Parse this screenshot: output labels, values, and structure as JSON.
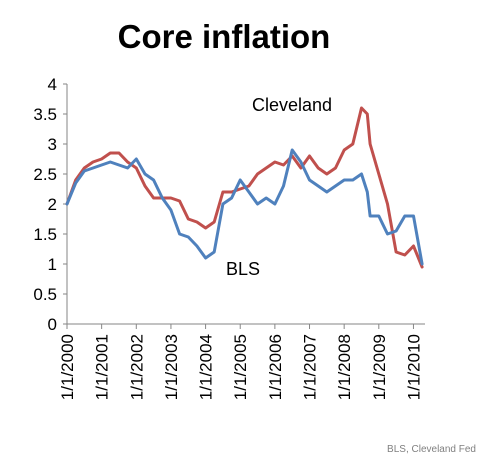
{
  "chart_data": {
    "type": "line",
    "title": "Core inflation",
    "source": "BLS, Cleveland Fed",
    "xlabel": "",
    "ylabel": "",
    "ylim": [
      0,
      4
    ],
    "yticks": [
      "0",
      "0.5",
      "1",
      "1.5",
      "2",
      "2.5",
      "3",
      "3.5",
      "4"
    ],
    "xlim": [
      "2000-01-01",
      "2010-05-01"
    ],
    "xticks": [
      "1/1/2000",
      "1/1/2001",
      "1/1/2002",
      "1/1/2003",
      "1/1/2004",
      "1/1/2005",
      "1/1/2006",
      "1/1/2007",
      "1/1/2008",
      "1/1/2009",
      "1/1/2010"
    ],
    "grid": false,
    "legend": "none",
    "colors": {
      "BLS": "#4f81bd",
      "Cleveland": "#c0504d"
    },
    "series": [
      {
        "name": "Cleveland",
        "color": "#c0504d",
        "x": [
          "2000-01",
          "2000-04",
          "2000-07",
          "2000-10",
          "2001-01",
          "2001-04",
          "2001-07",
          "2001-10",
          "2002-01",
          "2002-04",
          "2002-07",
          "2002-10",
          "2003-01",
          "2003-04",
          "2003-07",
          "2003-10",
          "2004-01",
          "2004-04",
          "2004-07",
          "2004-10",
          "2005-01",
          "2005-04",
          "2005-07",
          "2005-10",
          "2006-01",
          "2006-04",
          "2006-07",
          "2006-10",
          "2007-01",
          "2007-04",
          "2007-07",
          "2007-10",
          "2008-01",
          "2008-04",
          "2008-07",
          "2008-09",
          "2008-10",
          "2009-01",
          "2009-04",
          "2009-07",
          "2009-10",
          "2010-01",
          "2010-04"
        ],
        "values": [
          2.0,
          2.4,
          2.6,
          2.7,
          2.75,
          2.85,
          2.85,
          2.7,
          2.6,
          2.3,
          2.1,
          2.1,
          2.1,
          2.05,
          1.75,
          1.7,
          1.6,
          1.7,
          2.2,
          2.2,
          2.25,
          2.3,
          2.5,
          2.6,
          2.7,
          2.65,
          2.8,
          2.6,
          2.8,
          2.6,
          2.5,
          2.6,
          2.9,
          3.0,
          3.6,
          3.5,
          3.0,
          2.5,
          2.0,
          1.2,
          1.15,
          1.3,
          0.95
        ]
      },
      {
        "name": "BLS",
        "color": "#4f81bd",
        "x": [
          "2000-01",
          "2000-04",
          "2000-07",
          "2000-10",
          "2001-01",
          "2001-04",
          "2001-07",
          "2001-10",
          "2002-01",
          "2002-04",
          "2002-07",
          "2002-10",
          "2003-01",
          "2003-04",
          "2003-07",
          "2003-10",
          "2004-01",
          "2004-04",
          "2004-07",
          "2004-10",
          "2005-01",
          "2005-04",
          "2005-07",
          "2005-10",
          "2006-01",
          "2006-04",
          "2006-07",
          "2006-10",
          "2007-01",
          "2007-04",
          "2007-07",
          "2007-10",
          "2008-01",
          "2008-04",
          "2008-07",
          "2008-09",
          "2008-10",
          "2009-01",
          "2009-04",
          "2009-07",
          "2009-10",
          "2010-01",
          "2010-04"
        ],
        "values": [
          2.0,
          2.35,
          2.55,
          2.6,
          2.65,
          2.7,
          2.65,
          2.6,
          2.75,
          2.5,
          2.4,
          2.1,
          1.9,
          1.5,
          1.45,
          1.3,
          1.1,
          1.2,
          2.0,
          2.1,
          2.4,
          2.2,
          2.0,
          2.1,
          2.0,
          2.3,
          2.9,
          2.7,
          2.4,
          2.3,
          2.2,
          2.3,
          2.4,
          2.4,
          2.5,
          2.2,
          1.8,
          1.8,
          1.5,
          1.55,
          1.8,
          1.8,
          1.0
        ]
      }
    ],
    "annotations": [
      {
        "text": "Cleveland",
        "series": "Cleveland"
      },
      {
        "text": "BLS",
        "series": "BLS"
      }
    ]
  }
}
